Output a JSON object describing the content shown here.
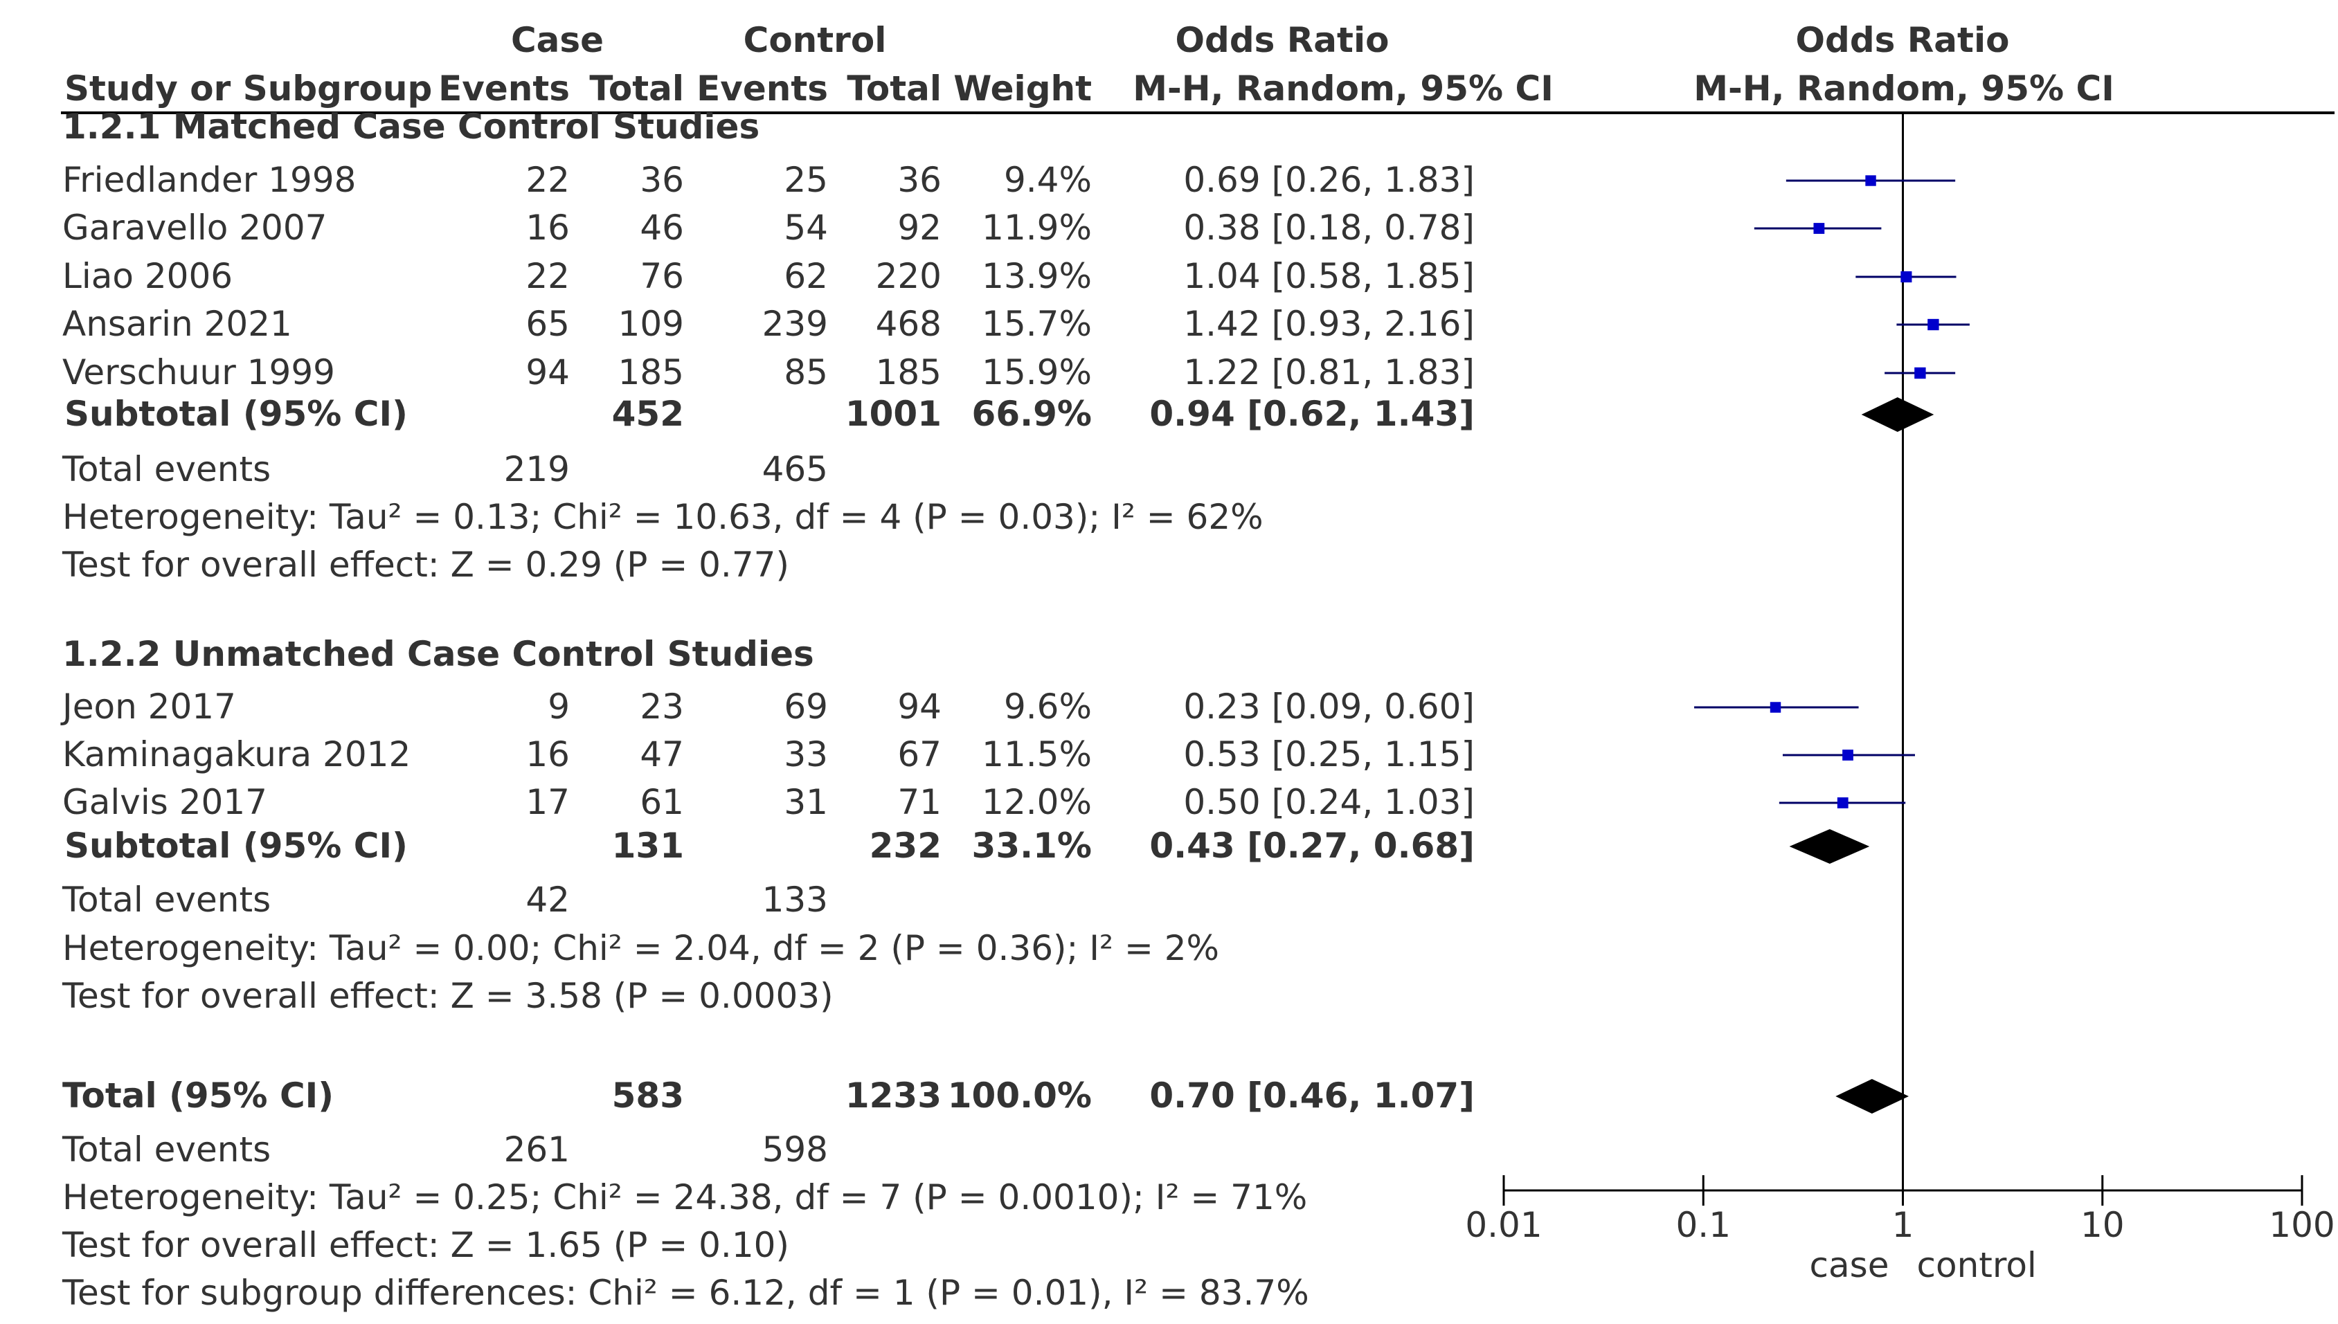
{
  "header": {
    "study_col": "Study or Subgroup",
    "case_group": "Case",
    "control_group": "Control",
    "events": "Events",
    "total": "Total",
    "weight": "Weight",
    "or_group": "Odds Ratio",
    "or_method": "M-H, Random, 95% CI",
    "plot_title": "Odds Ratio",
    "plot_method": "M-H, Random, 95% CI"
  },
  "subgroups": [
    {
      "title": "1.2.1 Matched Case Control Studies",
      "studies": [
        {
          "name": "Friedlander 1998",
          "case_events": "22",
          "case_total": "36",
          "control_events": "25",
          "control_total": "36",
          "weight": "9.4%",
          "ci_text": "0.69 [0.26, 1.83]",
          "or": 0.69,
          "lo": 0.26,
          "hi": 1.83
        },
        {
          "name": "Garavello 2007",
          "case_events": "16",
          "case_total": "46",
          "control_events": "54",
          "control_total": "92",
          "weight": "11.9%",
          "ci_text": "0.38 [0.18, 0.78]",
          "or": 0.38,
          "lo": 0.18,
          "hi": 0.78
        },
        {
          "name": "Liao 2006",
          "case_events": "22",
          "case_total": "76",
          "control_events": "62",
          "control_total": "220",
          "weight": "13.9%",
          "ci_text": "1.04 [0.58, 1.85]",
          "or": 1.04,
          "lo": 0.58,
          "hi": 1.85
        },
        {
          "name": "Ansarin 2021",
          "case_events": "65",
          "case_total": "109",
          "control_events": "239",
          "control_total": "468",
          "weight": "15.7%",
          "ci_text": "1.42 [0.93, 2.16]",
          "or": 1.42,
          "lo": 0.93,
          "hi": 2.16
        },
        {
          "name": "Verschuur 1999",
          "case_events": "94",
          "case_total": "185",
          "control_events": "85",
          "control_total": "185",
          "weight": "15.9%",
          "ci_text": "1.22 [0.81, 1.83]",
          "or": 1.22,
          "lo": 0.81,
          "hi": 1.83
        }
      ],
      "subtotal": {
        "label": "Subtotal (95% CI)",
        "case_total": "452",
        "control_total": "1001",
        "weight": "66.9%",
        "ci_text": "0.94 [0.62, 1.43]",
        "or": 0.94,
        "lo": 0.62,
        "hi": 1.43
      },
      "events": {
        "label": "Total events",
        "case": "219",
        "control": "465"
      },
      "heterogeneity": "Heterogeneity: Tau² = 0.13; Chi² = 10.63, df = 4 (P = 0.03); I² = 62%",
      "overall": "Test for overall effect: Z = 0.29 (P = 0.77)"
    },
    {
      "title": "1.2.2 Unmatched Case Control Studies",
      "studies": [
        {
          "name": "Jeon 2017",
          "case_events": "9",
          "case_total": "23",
          "control_events": "69",
          "control_total": "94",
          "weight": "9.6%",
          "ci_text": "0.23 [0.09, 0.60]",
          "or": 0.23,
          "lo": 0.09,
          "hi": 0.6
        },
        {
          "name": "Kaminagakura 2012",
          "case_events": "16",
          "case_total": "47",
          "control_events": "33",
          "control_total": "67",
          "weight": "11.5%",
          "ci_text": "0.53 [0.25, 1.15]",
          "or": 0.53,
          "lo": 0.25,
          "hi": 1.15
        },
        {
          "name": "Galvis 2017",
          "case_events": "17",
          "case_total": "61",
          "control_events": "31",
          "control_total": "71",
          "weight": "12.0%",
          "ci_text": "0.50 [0.24, 1.03]",
          "or": 0.5,
          "lo": 0.24,
          "hi": 1.03
        }
      ],
      "subtotal": {
        "label": "Subtotal (95% CI)",
        "case_total": "131",
        "control_total": "232",
        "weight": "33.1%",
        "ci_text": "0.43 [0.27, 0.68]",
        "or": 0.43,
        "lo": 0.27,
        "hi": 0.68
      },
      "events": {
        "label": "Total events",
        "case": "42",
        "control": "133"
      },
      "heterogeneity": "Heterogeneity: Tau² = 0.00; Chi² = 2.04, df = 2 (P = 0.36); I² = 2%",
      "overall": "Test for overall effect: Z = 3.58 (P = 0.0003)"
    }
  ],
  "total": {
    "label": "Total (95% CI)",
    "case_total": "583",
    "control_total": "1233",
    "weight": "100.0%",
    "ci_text": "0.70 [0.46, 1.07]",
    "or": 0.7,
    "lo": 0.46,
    "hi": 1.07,
    "events": {
      "label": "Total events",
      "case": "261",
      "control": "598"
    },
    "heterogeneity": "Heterogeneity: Tau² = 0.25; Chi² = 24.38, df = 7 (P = 0.0010); I² = 71%",
    "overall": "Test for overall effect: Z = 1.65 (P = 0.10)",
    "subgroup_test": "Test for subgroup differences: Chi² = 6.12, df = 1 (P = 0.01), I² = 83.7%"
  },
  "axis": {
    "ticks": [
      0.01,
      0.1,
      1,
      10,
      100
    ],
    "tick_labels": [
      "0.01",
      "0.1",
      "1",
      "10",
      "100"
    ],
    "left_label": "case",
    "right_label": "control"
  },
  "colors": {
    "marker": "#0000cc",
    "line": "#000066",
    "diamond": "#000000",
    "text": "#333333"
  },
  "chart_data": {
    "type": "scatter",
    "subtype": "forest-plot",
    "title": "Odds Ratio",
    "xlabel": "M-H, Random, 95% CI",
    "xscale": "log",
    "xlim": [
      0.01,
      100
    ],
    "series": [
      {
        "name": "Studies",
        "labels": [
          "Friedlander 1998",
          "Garavello 2007",
          "Liao 2006",
          "Ansarin 2021",
          "Verschuur 1999",
          "Jeon 2017",
          "Kaminagakura 2012",
          "Galvis 2017"
        ],
        "values": [
          0.69,
          0.38,
          1.04,
          1.42,
          1.22,
          0.23,
          0.53,
          0.5
        ],
        "lower": [
          0.26,
          0.18,
          0.58,
          0.93,
          0.81,
          0.09,
          0.25,
          0.24
        ],
        "upper": [
          1.83,
          0.78,
          1.85,
          2.16,
          1.83,
          0.6,
          1.15,
          1.03
        ],
        "weights": [
          9.4,
          11.9,
          13.9,
          15.7,
          15.9,
          9.6,
          11.5,
          12.0
        ]
      },
      {
        "name": "Pooled",
        "labels": [
          "Subtotal 1.2.1",
          "Subtotal 1.2.2",
          "Total"
        ],
        "values": [
          0.94,
          0.43,
          0.7
        ],
        "lower": [
          0.62,
          0.27,
          0.46
        ],
        "upper": [
          1.43,
          0.68,
          1.07
        ]
      }
    ],
    "axis_labels": [
      "case",
      "control"
    ]
  }
}
